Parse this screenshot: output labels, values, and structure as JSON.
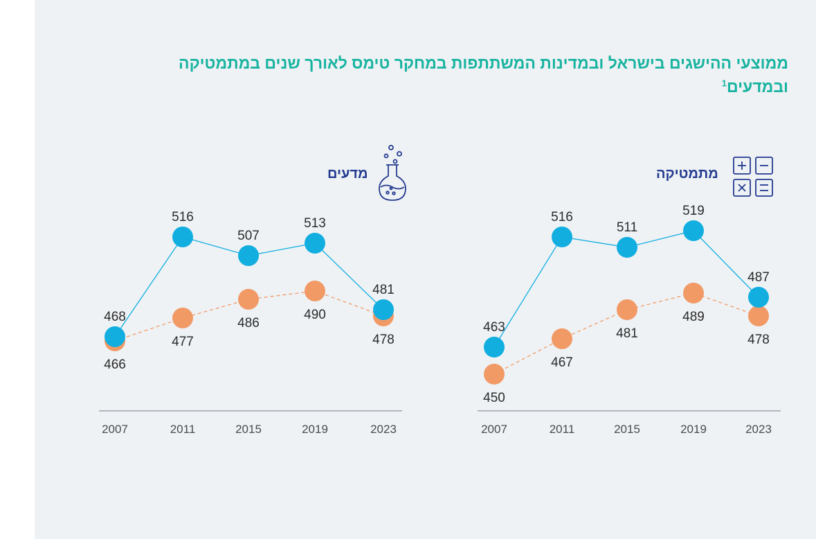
{
  "page": {
    "title": "ממוצעי ההישגים בישראל ובמדינות המשתתפות במחקר טימס לאורך שנים במתמטיקה ובמדעים",
    "footnote_mark": "1"
  },
  "colors": {
    "israel": "#12aee0",
    "participating": "#f29a66",
    "title": "#18b3a0",
    "subtitle": "#233a8f"
  },
  "chart_data": [
    {
      "type": "line",
      "title": "מתמטיקה",
      "icon": "calculator-icon",
      "categories": [
        "2007",
        "2011",
        "2015",
        "2019",
        "2023"
      ],
      "ylim": [
        440,
        530
      ],
      "series": [
        {
          "name": "israel",
          "style": "solid",
          "values": [
            463,
            516,
            511,
            519,
            487
          ]
        },
        {
          "name": "participating-countries",
          "style": "dashed",
          "values": [
            450,
            467,
            481,
            489,
            478
          ]
        }
      ]
    },
    {
      "type": "line",
      "title": "מדעים",
      "icon": "flask-icon",
      "categories": [
        "2007",
        "2011",
        "2015",
        "2019",
        "2023"
      ],
      "ylim": [
        440,
        530
      ],
      "series": [
        {
          "name": "israel",
          "style": "solid",
          "values": [
            468,
            516,
            507,
            513,
            481
          ]
        },
        {
          "name": "participating-countries",
          "style": "dashed",
          "values": [
            466,
            477,
            486,
            490,
            478
          ]
        }
      ]
    }
  ]
}
